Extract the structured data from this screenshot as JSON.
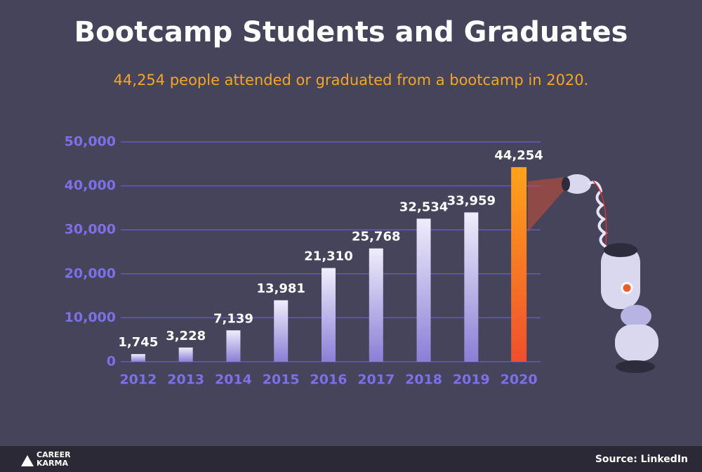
{
  "chart_data": {
    "type": "bar",
    "title": "Bootcamp Students and Graduates",
    "subtitle": "44,254 people attended or graduated from a bootcamp in 2020.",
    "categories": [
      "2012",
      "2013",
      "2014",
      "2015",
      "2016",
      "2017",
      "2018",
      "2019",
      "2020"
    ],
    "values": [
      1745,
      3228,
      7139,
      13981,
      21310,
      25768,
      32534,
      33959,
      44254
    ],
    "value_labels": [
      "1,745",
      "3,228",
      "7,139",
      "13,981",
      "21,310",
      "25,768",
      "32,534",
      "33,959",
      "44,254"
    ],
    "colors": [
      [
        "#8a7ed6",
        "#efedfb"
      ],
      [
        "#8a7ed6",
        "#efedfb"
      ],
      [
        "#8a7ed6",
        "#efedfb"
      ],
      [
        "#8a7ed6",
        "#efedfb"
      ],
      [
        "#8a7ed6",
        "#efedfb"
      ],
      [
        "#8a7ed6",
        "#efedfb"
      ],
      [
        "#8a7ed6",
        "#efedfb"
      ],
      [
        "#8a7ed6",
        "#efedfb"
      ],
      [
        "#ef4f2c",
        "#ffa31a"
      ]
    ],
    "ylim": [
      0,
      50000
    ],
    "yticks": [
      0,
      {
        "value": 10000,
        "label": "10,000"
      },
      {
        "value": 20000,
        "label": "20,000"
      },
      {
        "value": 30000,
        "label": "30,000"
      },
      {
        "value": 40000,
        "label": "40,000"
      },
      {
        "value": 50000,
        "label": "50,000"
      }
    ],
    "grid": true
  },
  "footer": {
    "brand_lines": [
      "CAREER",
      "KARMA"
    ],
    "source": "Source: LinkedIn"
  }
}
